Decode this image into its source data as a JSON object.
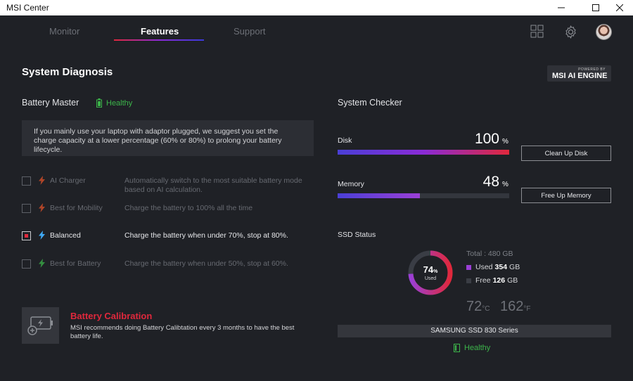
{
  "window": {
    "title": "MSI Center"
  },
  "nav": {
    "tabs": [
      {
        "label": "Monitor"
      },
      {
        "label": "Features"
      },
      {
        "label": "Support"
      }
    ]
  },
  "page": {
    "title": "System Diagnosis",
    "badge_small": "POWERED BY",
    "badge_big": "MSI AI ENGINE"
  },
  "battery": {
    "heading": "Battery Master",
    "status": "Healthy",
    "notice": "If you mainly use your laptop with adaptor plugged, we suggest you set the charge capacity at a lower percentage (60% or 80%) to prolong your battery lifecycle.",
    "options": [
      {
        "label": "AI Charger",
        "desc": "Automatically switch to the most suitable battery mode based on AI calculation.",
        "checked": false,
        "bolt_color": "#e0522a"
      },
      {
        "label": "Best for Mobility",
        "desc": "Charge the battery to 100% all the time",
        "checked": false,
        "bolt_color": "#e0522a"
      },
      {
        "label": "Balanced",
        "desc": "Charge the battery when under 70%, stop at 80%.",
        "checked": true,
        "bolt_color": "#3fa9f5"
      },
      {
        "label": "Best for Battery",
        "desc": "Charge the battery when under 50%, stop at 60%.",
        "checked": false,
        "bolt_color": "#3cb54a"
      }
    ],
    "calibration": {
      "title": "Battery Calibration",
      "text": "MSI recommends doing Battery Calibtation every 3 months to have the best battery life."
    }
  },
  "checker": {
    "heading": "System Checker",
    "disk": {
      "label": "Disk",
      "value": "100",
      "unit": "%",
      "fill": 1.0,
      "button": "Clean Up Disk"
    },
    "memory": {
      "label": "Memory",
      "value": "48",
      "unit": "%",
      "fill": 0.48,
      "button": "Free Up Memory"
    },
    "ssd": {
      "heading": "SSD Status",
      "percent": "74",
      "percent_unit": "%",
      "used_caption": "Used",
      "total": "Total : 480 GB",
      "used_label": "Used",
      "used_value": "354",
      "used_unit": "GB",
      "free_label": "Free",
      "free_value": "126",
      "free_unit": "GB",
      "temp_c": "72",
      "temp_c_unit": "°C",
      "temp_f": "162",
      "temp_f_unit": "°F",
      "name": "SAMSUNG SSD 830 Series",
      "status": "Healthy",
      "used_fraction": 0.74
    }
  },
  "colors": {
    "accent": "#e0283c",
    "healthy": "#3cb54a",
    "used": "#9b3fd6",
    "free": "#3a3d45"
  }
}
